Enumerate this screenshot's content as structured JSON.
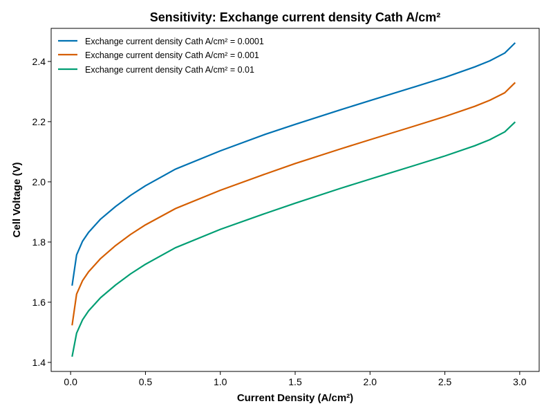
{
  "chart_data": {
    "type": "line",
    "title": "Sensitivity: Exchange current density Cath A/cm²",
    "xlabel": "Current Density (A/cm²)",
    "ylabel": "Cell Voltage (V)",
    "xlim": [
      -0.13,
      3.13
    ],
    "ylim": [
      1.37,
      2.51
    ],
    "xticks": [
      0.0,
      0.5,
      1.0,
      1.5,
      2.0,
      2.5,
      3.0
    ],
    "xtick_labels": [
      "0.0",
      "0.5",
      "1.0",
      "1.5",
      "2.0",
      "2.5",
      "3.0"
    ],
    "yticks": [
      1.4,
      1.6,
      1.8,
      2.0,
      2.2,
      2.4
    ],
    "ytick_labels": [
      "1.4",
      "1.6",
      "1.8",
      "2.0",
      "2.2",
      "2.4"
    ],
    "grid": false,
    "legend_position": "top-left",
    "x": [
      0.01,
      0.04,
      0.08,
      0.12,
      0.2,
      0.3,
      0.4,
      0.5,
      0.7,
      1.0,
      1.3,
      1.5,
      1.8,
      2.0,
      2.3,
      2.5,
      2.7,
      2.8,
      2.9,
      2.97
    ],
    "series": [
      {
        "name": "Exchange current density Cath A/cm² = 0.0001",
        "color": "#0072B2",
        "values": [
          1.655,
          1.757,
          1.803,
          1.832,
          1.876,
          1.918,
          1.955,
          1.987,
          2.042,
          2.103,
          2.158,
          2.191,
          2.239,
          2.27,
          2.316,
          2.347,
          2.382,
          2.402,
          2.428,
          2.462
        ]
      },
      {
        "name": "Exchange current density Cath A/cm² = 0.001",
        "color": "#D55E00",
        "values": [
          1.523,
          1.627,
          1.672,
          1.701,
          1.745,
          1.788,
          1.825,
          1.857,
          1.911,
          1.972,
          2.026,
          2.061,
          2.109,
          2.14,
          2.186,
          2.217,
          2.251,
          2.271,
          2.296,
          2.33
        ]
      },
      {
        "name": "Exchange current density Cath A/cm² = 0.01",
        "color": "#009E73",
        "values": [
          1.419,
          1.497,
          1.542,
          1.571,
          1.615,
          1.657,
          1.694,
          1.726,
          1.781,
          1.842,
          1.895,
          1.929,
          1.978,
          2.009,
          2.055,
          2.086,
          2.12,
          2.14,
          2.166,
          2.199
        ]
      }
    ]
  }
}
